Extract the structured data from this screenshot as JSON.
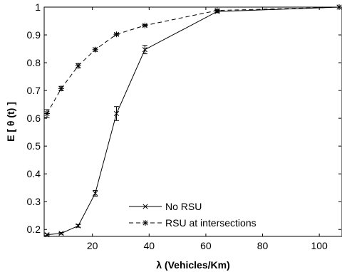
{
  "chart_data": {
    "type": "line",
    "xlabel": "λ (Vehicles/Km)",
    "ylabel": "E [ θ (t) ]",
    "xlim": [
      3,
      108
    ],
    "ylim": [
      0.175,
      1.0
    ],
    "xticks": [
      20,
      40,
      60,
      80,
      100
    ],
    "yticks": [
      0.2,
      0.3,
      0.4,
      0.5,
      0.6,
      0.7,
      0.8,
      0.9,
      1
    ],
    "grid": false,
    "legend_position": "bottom-center",
    "series": [
      {
        "name": "No RSU",
        "line_style": "solid",
        "marker": "x",
        "color": "#000000",
        "x": [
          4,
          9,
          15,
          21,
          28.5,
          38.5,
          64,
          107
        ],
        "y": [
          0.181,
          0.186,
          0.213,
          0.33,
          0.617,
          0.847,
          0.984,
          1.0
        ],
        "err": [
          0.003,
          0.003,
          0.005,
          0.01,
          0.025,
          0.015,
          0.004,
          0.0
        ]
      },
      {
        "name": "RSU at intersections",
        "line_style": "dashed",
        "marker": "*",
        "color": "#000000",
        "x": [
          4,
          9,
          15,
          21,
          28.5,
          38.5,
          64,
          107
        ],
        "y": [
          0.617,
          0.707,
          0.789,
          0.847,
          0.902,
          0.934,
          0.988,
          1.0
        ],
        "err": [
          0.014,
          0.008,
          0.008,
          0.006,
          0.004,
          0.003,
          0.002,
          0.0
        ]
      }
    ]
  }
}
